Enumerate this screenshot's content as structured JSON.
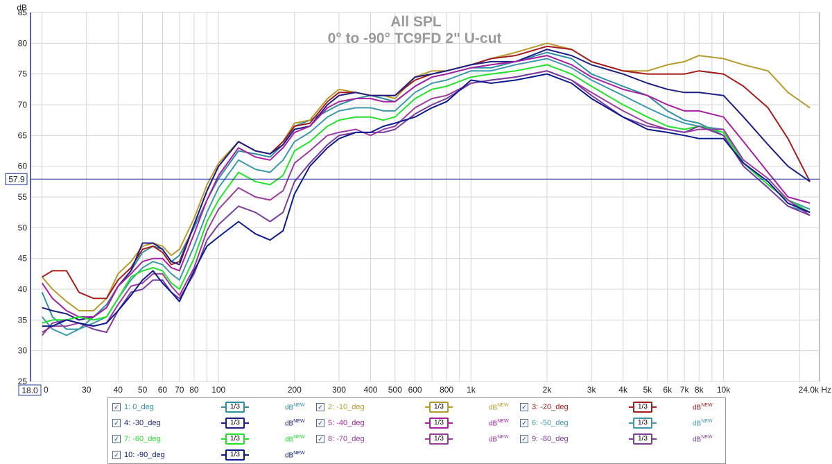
{
  "chart_data": {
    "type": "line",
    "title": "All SPL",
    "subtitle": "0° to -90° TC9FD 2\" U-cut",
    "ylabel": "dB",
    "xunit": "Hz",
    "xscale": "log",
    "xlim": [
      18.0,
      24000
    ],
    "ylim": [
      25,
      85
    ],
    "yticks": [
      25,
      30,
      35,
      40,
      45,
      50,
      55,
      60,
      65,
      70,
      75,
      80,
      85
    ],
    "xticks": [
      {
        "v": 30,
        "label": "30"
      },
      {
        "v": 40,
        "label": "40"
      },
      {
        "v": 50,
        "label": "50"
      },
      {
        "v": 60,
        "label": "60"
      },
      {
        "v": 70,
        "label": "70"
      },
      {
        "v": 80,
        "label": "80"
      },
      {
        "v": 100,
        "label": "100"
      },
      {
        "v": 200,
        "label": "200"
      },
      {
        "v": 300,
        "label": "300"
      },
      {
        "v": 400,
        "label": "400"
      },
      {
        "v": 500,
        "label": "500"
      },
      {
        "v": 600,
        "label": "600"
      },
      {
        "v": 800,
        "label": "800"
      },
      {
        "v": 1000,
        "label": "1k"
      },
      {
        "v": 2000,
        "label": "2k"
      },
      {
        "v": 3000,
        "label": "3k"
      },
      {
        "v": 4000,
        "label": "4k"
      },
      {
        "v": 5000,
        "label": "5k"
      },
      {
        "v": 6000,
        "label": "6k"
      },
      {
        "v": 7000,
        "label": "7k"
      },
      {
        "v": 8000,
        "label": "8k"
      },
      {
        "v": 10000,
        "label": "10k"
      }
    ],
    "xmin_label": "18.0",
    "xmin_suffix": "0",
    "xmax_label": "24.0k Hz",
    "cursor_y": 57.9,
    "cursor_label": "57.9",
    "grid": true,
    "x": [
      20,
      22,
      25,
      28,
      32,
      36,
      40,
      45,
      50,
      55,
      60,
      65,
      70,
      80,
      90,
      100,
      120,
      140,
      160,
      180,
      200,
      230,
      270,
      300,
      350,
      400,
      450,
      500,
      600,
      700,
      800,
      1000,
      1200,
      1500,
      2000,
      2500,
      3000,
      4000,
      5000,
      6000,
      7000,
      8000,
      10000,
      12000,
      15000,
      18000,
      22000
    ],
    "series": [
      {
        "name": "0_deg",
        "color": "#2f8fa3",
        "values": [
          39.5,
          35.5,
          33.5,
          33.5,
          35.5,
          37.5,
          40.5,
          43.0,
          46.0,
          47.0,
          46.5,
          44.5,
          45.5,
          50.0,
          54.5,
          58.0,
          62.5,
          62.0,
          61.5,
          63.5,
          66.5,
          67.5,
          69.0,
          70.0,
          71.0,
          71.5,
          71.0,
          70.5,
          73.0,
          74.5,
          75.0,
          76.0,
          76.0,
          77.0,
          78.5,
          77.5,
          75.0,
          73.0,
          71.5,
          69.0,
          67.5,
          67.0,
          65.0,
          60.0,
          56.5,
          53.5,
          52.5
        ]
      },
      {
        "name": "-10_deg",
        "color": "#b99a2c",
        "values": [
          42.0,
          40.0,
          38.0,
          36.5,
          36.5,
          38.5,
          42.5,
          44.5,
          47.0,
          47.5,
          47.0,
          45.5,
          46.5,
          51.5,
          57.0,
          60.5,
          64.0,
          62.5,
          62.0,
          64.0,
          67.0,
          67.5,
          71.0,
          72.5,
          72.0,
          71.5,
          71.5,
          71.0,
          74.5,
          75.5,
          75.5,
          76.5,
          77.5,
          78.5,
          80.0,
          79.0,
          77.0,
          75.5,
          75.5,
          76.5,
          77.0,
          78.0,
          77.5,
          76.5,
          75.5,
          72.0,
          69.5
        ]
      },
      {
        "name": "-20_deg",
        "color": "#a51d1d",
        "values": [
          42.0,
          43.0,
          43.0,
          39.5,
          38.5,
          38.5,
          41.5,
          43.5,
          46.5,
          47.0,
          46.0,
          44.0,
          44.5,
          50.5,
          56.0,
          60.0,
          64.0,
          62.5,
          62.0,
          64.0,
          66.5,
          67.0,
          70.5,
          72.0,
          72.0,
          71.5,
          71.5,
          71.5,
          74.0,
          75.0,
          75.5,
          76.5,
          77.5,
          78.0,
          79.5,
          79.0,
          77.0,
          75.5,
          75.0,
          75.0,
          75.0,
          75.5,
          75.0,
          73.0,
          69.5,
          64.5,
          57.5
        ]
      },
      {
        "name": "-30_deg",
        "color": "#1c1f86",
        "values": [
          37.0,
          36.5,
          36.0,
          35.0,
          35.5,
          37.0,
          40.5,
          43.0,
          47.5,
          47.5,
          46.5,
          44.5,
          44.0,
          50.5,
          56.0,
          60.0,
          64.0,
          62.5,
          62.0,
          63.5,
          66.0,
          66.5,
          70.0,
          71.5,
          72.0,
          71.5,
          71.5,
          71.5,
          74.5,
          75.0,
          75.5,
          76.5,
          77.0,
          77.0,
          79.0,
          78.0,
          76.5,
          75.0,
          73.5,
          72.5,
          72.0,
          72.0,
          71.5,
          68.0,
          63.5,
          60.0,
          57.5
        ]
      },
      {
        "name": "-40_deg",
        "color": "#a81fa3",
        "values": [
          41.0,
          38.5,
          36.5,
          35.5,
          35.5,
          37.0,
          40.5,
          42.5,
          44.5,
          45.0,
          45.0,
          43.5,
          43.0,
          49.0,
          54.5,
          58.5,
          63.0,
          61.5,
          61.0,
          63.0,
          65.5,
          66.5,
          69.5,
          70.5,
          71.0,
          71.0,
          70.5,
          70.5,
          73.0,
          74.5,
          75.0,
          76.0,
          76.5,
          77.0,
          78.0,
          76.5,
          74.5,
          72.5,
          71.5,
          70.0,
          69.0,
          69.0,
          68.0,
          64.0,
          59.0,
          55.0,
          54.0
        ]
      },
      {
        "name": "-50_deg",
        "color": "#3e98ad",
        "values": [
          35.5,
          33.5,
          32.5,
          33.5,
          34.5,
          35.5,
          38.5,
          41.5,
          43.5,
          44.5,
          44.0,
          42.5,
          41.5,
          47.0,
          52.5,
          56.5,
          61.0,
          59.5,
          59.0,
          61.0,
          64.0,
          65.5,
          68.0,
          69.0,
          69.5,
          69.5,
          69.0,
          69.0,
          72.0,
          73.5,
          74.0,
          75.5,
          75.5,
          76.5,
          77.5,
          76.0,
          74.0,
          71.5,
          69.5,
          68.0,
          67.0,
          66.5,
          66.0,
          60.5,
          57.0,
          54.5,
          53.0
        ]
      },
      {
        "name": "-60_deg",
        "color": "#22e329",
        "values": [
          34.5,
          35.0,
          35.0,
          35.5,
          35.0,
          35.5,
          38.5,
          42.0,
          43.0,
          43.5,
          43.0,
          41.0,
          40.0,
          45.0,
          51.0,
          54.5,
          59.0,
          57.5,
          57.0,
          58.5,
          62.5,
          64.0,
          66.5,
          67.5,
          68.0,
          68.0,
          67.5,
          68.0,
          71.0,
          72.5,
          73.0,
          74.5,
          75.0,
          75.5,
          76.5,
          75.0,
          73.0,
          70.0,
          68.0,
          66.5,
          66.0,
          66.5,
          65.5,
          60.5,
          57.0,
          54.5,
          52.5
        ]
      },
      {
        "name": "-70_deg",
        "color": "#9b3c9e",
        "values": [
          33.0,
          34.0,
          34.0,
          34.5,
          34.0,
          34.5,
          37.5,
          40.5,
          41.0,
          42.5,
          42.5,
          40.5,
          39.0,
          43.5,
          49.5,
          53.0,
          56.5,
          55.0,
          54.5,
          56.0,
          60.5,
          62.5,
          65.0,
          65.5,
          66.0,
          65.0,
          66.0,
          66.5,
          69.5,
          71.0,
          71.5,
          73.5,
          74.0,
          74.5,
          75.5,
          74.0,
          72.0,
          69.0,
          67.0,
          66.0,
          65.5,
          66.0,
          66.0,
          61.0,
          58.0,
          54.5,
          52.0
        ]
      },
      {
        "name": "-80_deg",
        "color": "#7b3e9e",
        "values": [
          32.5,
          34.5,
          35.0,
          34.5,
          33.5,
          33.0,
          36.5,
          39.5,
          40.0,
          41.5,
          41.5,
          39.5,
          38.5,
          42.5,
          48.0,
          50.5,
          53.5,
          52.5,
          51.0,
          52.5,
          57.5,
          60.5,
          63.5,
          65.0,
          65.5,
          65.5,
          65.5,
          66.0,
          68.5,
          70.0,
          71.0,
          73.5,
          74.0,
          74.5,
          75.5,
          74.0,
          71.5,
          68.0,
          66.5,
          66.0,
          65.5,
          66.5,
          65.0,
          60.0,
          56.5,
          53.5,
          52.0
        ]
      },
      {
        "name": "-90_deg",
        "color": "#0b1a8e",
        "values": [
          34.0,
          34.0,
          35.0,
          34.5,
          34.0,
          34.5,
          36.5,
          39.0,
          41.5,
          43.0,
          41.0,
          39.5,
          38.0,
          43.0,
          47.0,
          48.5,
          51.0,
          49.0,
          48.0,
          49.5,
          55.5,
          60.0,
          63.0,
          64.5,
          65.5,
          65.5,
          66.5,
          67.0,
          68.0,
          69.5,
          70.5,
          74.0,
          73.5,
          74.0,
          75.0,
          73.5,
          71.0,
          68.0,
          66.0,
          65.5,
          65.0,
          64.5,
          64.5,
          60.5,
          57.5,
          54.0,
          52.5
        ]
      }
    ]
  },
  "legend": {
    "items": [
      {
        "label": "1: 0_deg",
        "color": "#2f8fa3"
      },
      {
        "label": "2: -10_deg",
        "color": "#b99a2c"
      },
      {
        "label": "3: -20_deg",
        "color": "#a51d1d"
      },
      {
        "label": "4: -30_deg",
        "color": "#1c1f86"
      },
      {
        "label": "5: -40_deg",
        "color": "#a81fa3"
      },
      {
        "label": "6: -50_deg",
        "color": "#3e98ad"
      },
      {
        "label": "7: -60_deg",
        "color": "#22e329"
      },
      {
        "label": "8: -70_deg",
        "color": "#9b3c9e"
      },
      {
        "label": "9: -80_deg",
        "color": "#7b3e9e"
      },
      {
        "label": "10: -90_deg",
        "color": "#0b1a8e"
      }
    ],
    "smoothing_label": "1/3",
    "units_label": "dB",
    "units_sup": "NEW",
    "check_mark": "✓"
  }
}
